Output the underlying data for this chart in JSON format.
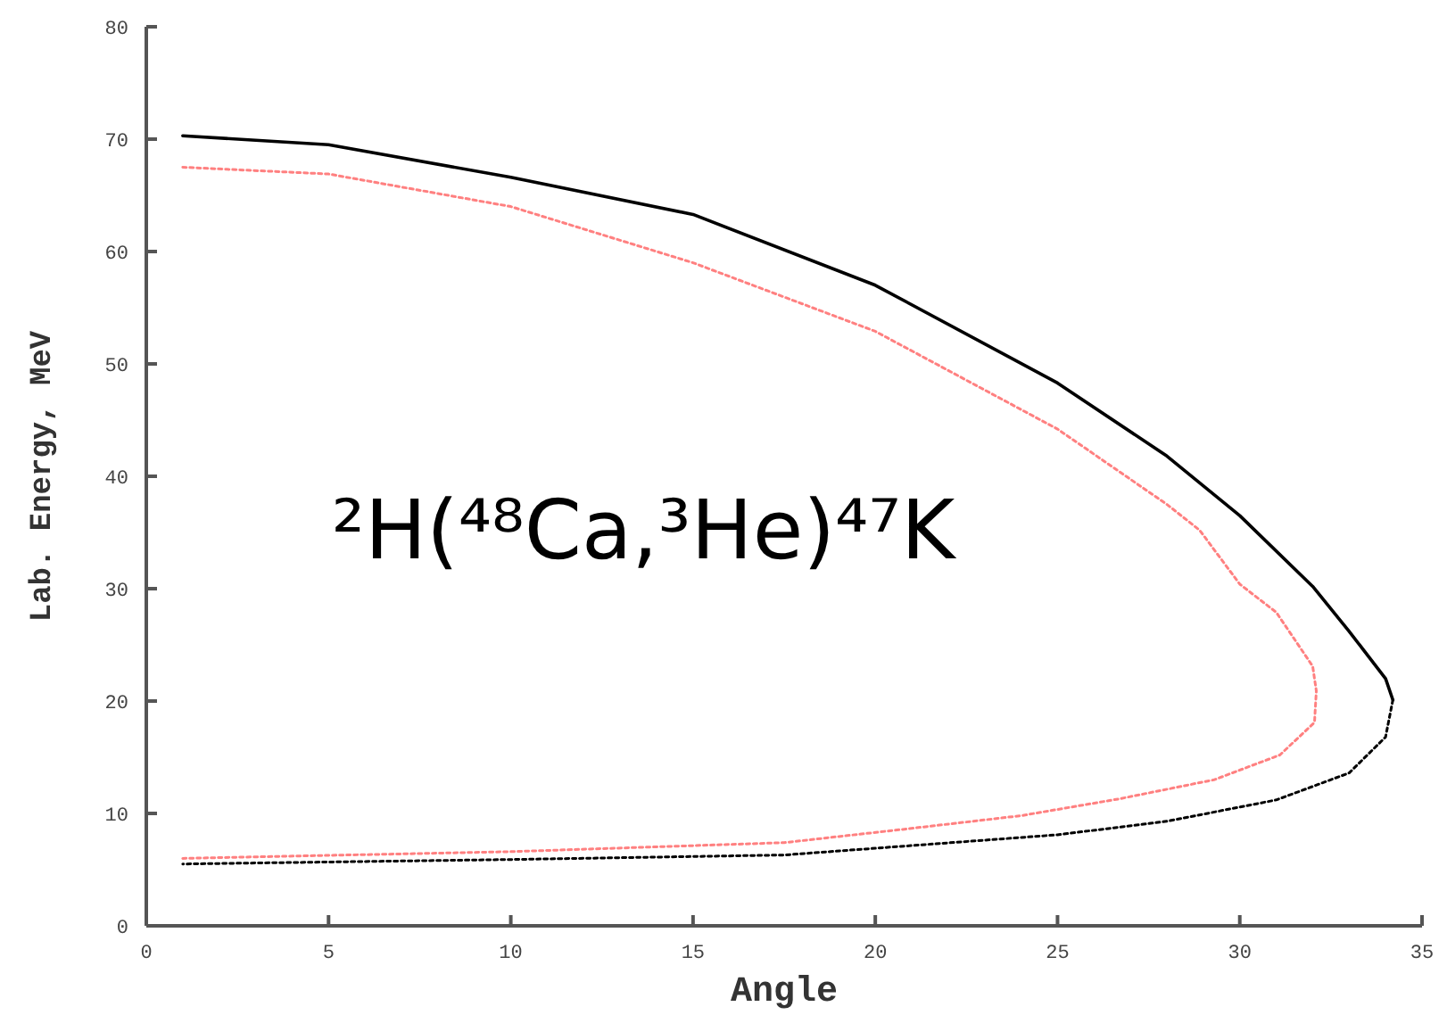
{
  "chart_data": {
    "type": "line",
    "xlabel": "Angle",
    "ylabel": "Lab. Energy, MeV",
    "xlim": [
      0,
      35
    ],
    "xticks": [
      0,
      5,
      10,
      15,
      20,
      25,
      30,
      35
    ],
    "ylim": [
      0,
      80
    ],
    "yticks": [
      0,
      10,
      20,
      30,
      40,
      50,
      60,
      70,
      80
    ],
    "marker": "none",
    "annotations": [
      "²H(⁴⁸Ca,³He)⁴⁷K"
    ],
    "series": [
      {
        "color": "#000000",
        "line_style": "solid",
        "x": [
          1,
          5,
          10,
          15,
          20,
          25,
          28,
          30,
          32,
          33,
          34,
          34.2
        ],
        "values": [
          70.3,
          69.5,
          66.6,
          63.3,
          57,
          48.3,
          41.8,
          36.5,
          30.2,
          26.2,
          22,
          20.1
        ]
      },
      {
        "color": "#000000",
        "line_style": "dotted",
        "x": [
          34.2,
          34,
          33,
          31,
          28,
          25,
          17.5,
          10,
          1
        ],
        "values": [
          20.1,
          16.8,
          13.6,
          11.2,
          9.3,
          8.1,
          6.3,
          5.9,
          5.5
        ]
      },
      {
        "color": "#ff8080",
        "line_style": "dotted",
        "x": [
          1,
          5,
          10,
          15,
          20,
          25,
          28,
          28.9,
          30,
          31,
          32,
          32.1,
          32.05,
          31.1,
          29.3,
          26.7,
          24,
          20.8,
          17.5,
          10,
          1
        ],
        "values": [
          67.5,
          66.9,
          64,
          59,
          52.9,
          44.2,
          37.5,
          35.2,
          30.4,
          27.9,
          23.1,
          20.9,
          18.1,
          15.2,
          13,
          11.3,
          9.8,
          8.6,
          7.4,
          6.6,
          6
        ]
      }
    ]
  }
}
